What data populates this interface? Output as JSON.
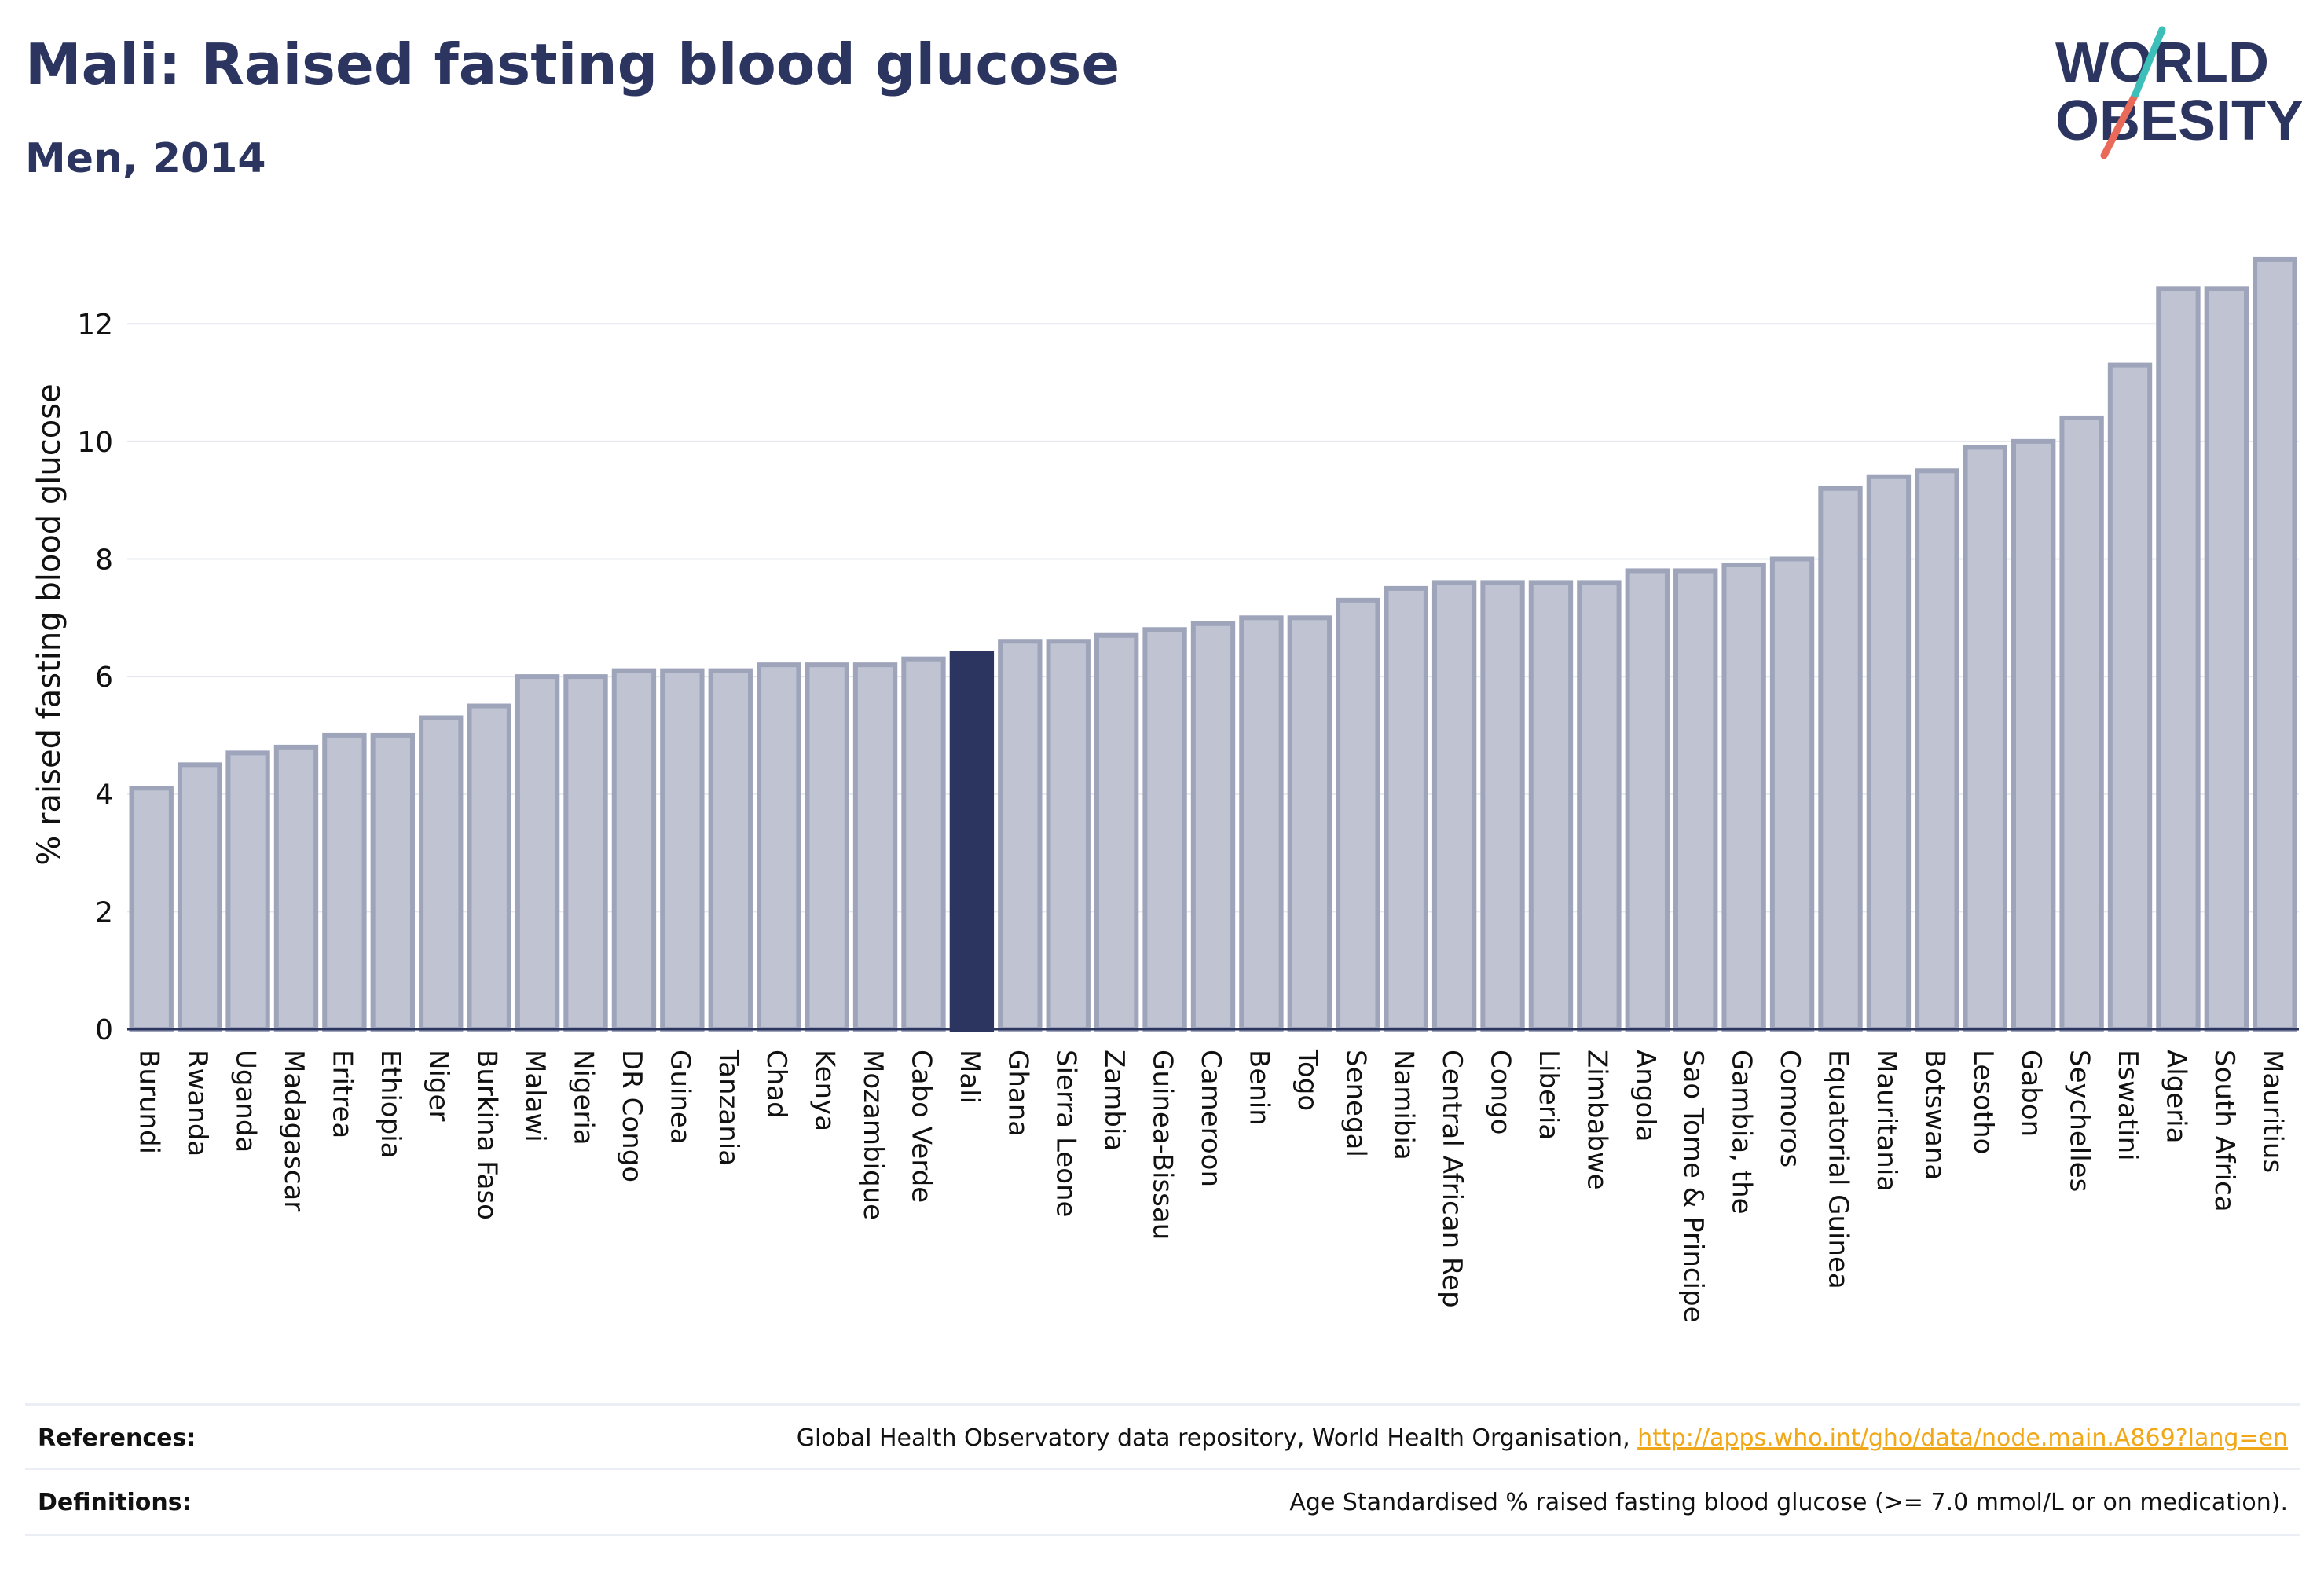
{
  "header": {
    "title": "Mali: Raised fasting blood glucose",
    "subtitle": "Men, 2014",
    "logo_line1": "WORLD",
    "logo_line2": "OBESITY"
  },
  "colors": {
    "bar_fill": "#bfc3d2",
    "bar_stroke": "#9ea4ba",
    "highlight": "#2b3560",
    "grid": "#e6e8ee",
    "logo_slash_teal": "#3cbfb8",
    "logo_slash_coral": "#ea6a5a"
  },
  "chart_data": {
    "type": "bar",
    "ylabel": "% raised fasting blood glucose",
    "ylim": [
      0,
      13.5
    ],
    "yticks": [
      0,
      2,
      4,
      6,
      8,
      10,
      12
    ],
    "grid": true,
    "highlight_category": "Mali",
    "categories": [
      "Burundi",
      "Rwanda",
      "Uganda",
      "Madagascar",
      "Eritrea",
      "Ethiopia",
      "Niger",
      "Burkina Faso",
      "Malawi",
      "Nigeria",
      "DR Congo",
      "Guinea",
      "Tanzania",
      "Chad",
      "Kenya",
      "Mozambique",
      "Cabo Verde",
      "Mali",
      "Ghana",
      "Sierra Leone",
      "Zambia",
      "Guinea-Bissau",
      "Cameroon",
      "Benin",
      "Togo",
      "Senegal",
      "Namibia",
      "Central African Rep",
      "Congo",
      "Liberia",
      "Zimbabwe",
      "Angola",
      "Sao Tome & Principe",
      "Gambia, the",
      "Comoros",
      "Equatorial Guinea",
      "Mauritania",
      "Botswana",
      "Lesotho",
      "Gabon",
      "Seychelles",
      "Eswatini",
      "Algeria",
      "South Africa",
      "Mauritius"
    ],
    "values": [
      4.1,
      4.5,
      4.7,
      4.8,
      5.0,
      5.0,
      5.3,
      5.5,
      6.0,
      6.0,
      6.1,
      6.1,
      6.1,
      6.2,
      6.2,
      6.2,
      6.3,
      6.4,
      6.6,
      6.6,
      6.7,
      6.8,
      6.9,
      7.0,
      7.0,
      7.3,
      7.5,
      7.6,
      7.6,
      7.6,
      7.6,
      7.8,
      7.8,
      7.9,
      8.0,
      9.2,
      9.4,
      9.5,
      9.9,
      10.0,
      10.4,
      11.3,
      12.6,
      12.6,
      13.1
    ]
  },
  "footer": {
    "references_label": "References:",
    "references_text": "Global Health Observatory data repository, World Health Organisation, ",
    "references_link": "http://apps.who.int/gho/data/node.main.A869?lang=en",
    "definitions_label": "Definitions:",
    "definitions_text": "Age Standardised % raised fasting blood glucose (>= 7.0 mmol/L or on medication)."
  }
}
